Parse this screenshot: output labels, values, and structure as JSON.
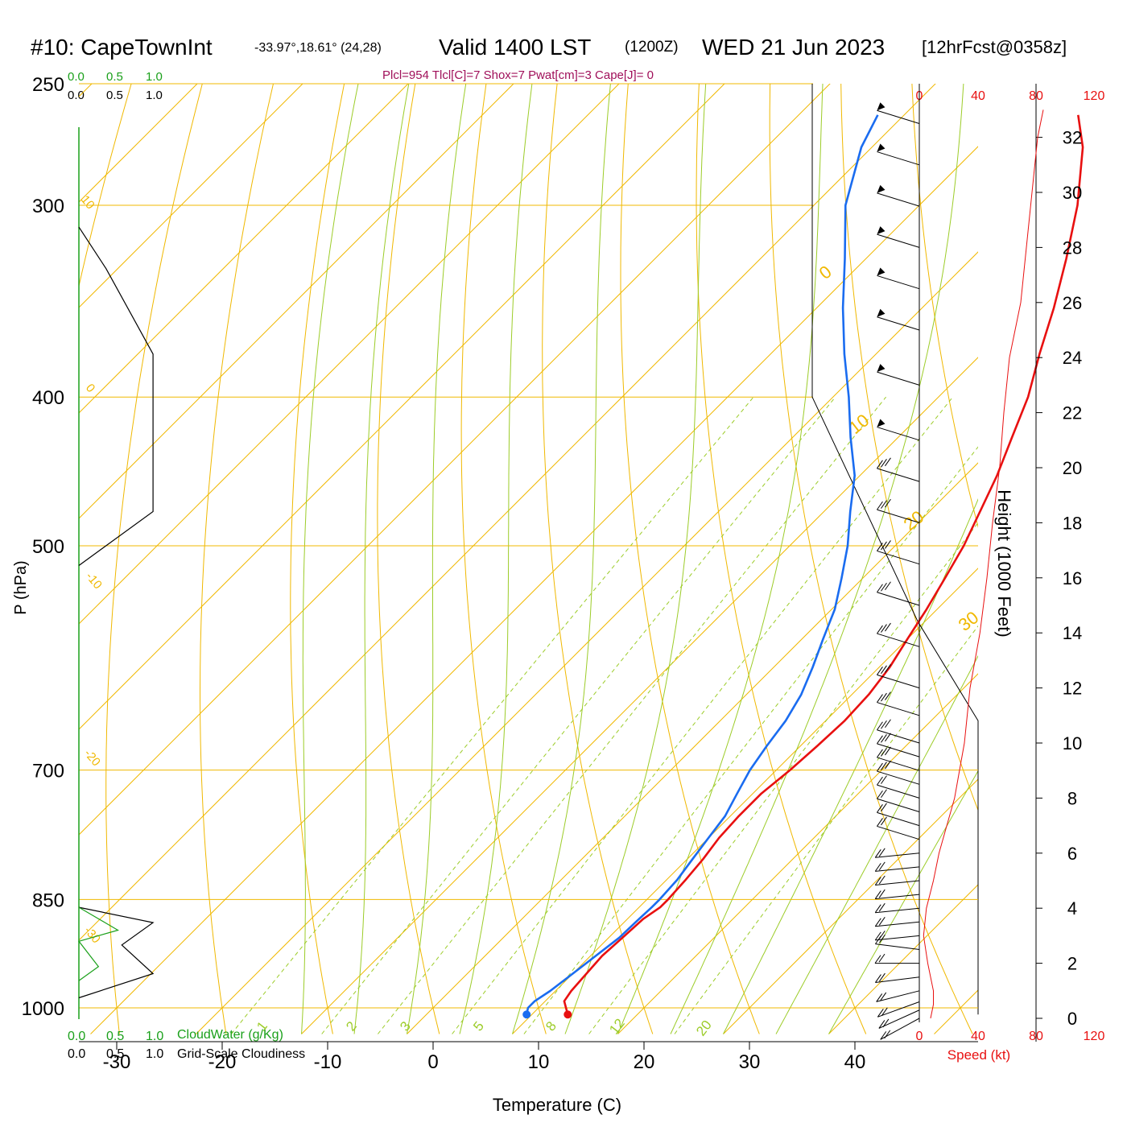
{
  "header": {
    "station": "#10: CapeTownInt",
    "coords": "-33.97°,18.61° (24,28)",
    "valid": "Valid 1400 LST",
    "zulu": "(1200Z)",
    "date": "WED 21 Jun 2023",
    "forecast": "[12hrFcst@0358z]"
  },
  "indices": "Plcl=954 Tlcl[C]=7 Shox=7 Pwat[cm]=3 Cape[J]= 0",
  "top_scales": {
    "green": [
      "0.0",
      "0.5",
      "1.0"
    ],
    "black": [
      "0.0",
      "0.5",
      "1.0"
    ]
  },
  "bottom_legend": {
    "green_ticks": [
      "0.0",
      "0.5",
      "1.0"
    ],
    "green_label": "CloudWater (g/Kg)",
    "black_ticks": [
      "0.0",
      "0.5",
      "1.0"
    ],
    "black_label": "Grid-Scale Cloudiness"
  },
  "wind_panel": {
    "top_ticks": [
      "0",
      "40",
      "80",
      "120"
    ],
    "bottom_ticks": [
      "0",
      "40",
      "80",
      "120"
    ],
    "speed_label": "Speed (kt)"
  },
  "height_axis": {
    "label": "Height (1000 Feet)",
    "ticks": [
      "0",
      "2",
      "4",
      "6",
      "8",
      "10",
      "12",
      "14",
      "16",
      "18",
      "20",
      "22",
      "24",
      "26",
      "28",
      "30",
      "32"
    ]
  },
  "isotherm_labels": [
    "0",
    "10",
    "20",
    "30"
  ],
  "dry_adiabat_labels": [
    "10",
    "0",
    "-10",
    "-20",
    "-30"
  ],
  "mixing_ratio_labels": [
    "1",
    "2",
    "3",
    "5",
    "8",
    "12",
    "20"
  ],
  "colors": {
    "temperature": "#e81010",
    "dewpoint": "#1a6cf0",
    "isobar_isotherm": "#f0b800",
    "adiabat": "#9ccc28",
    "cloud_water": "#1aa01a",
    "indices": "#a0105a",
    "speed": "#e81010"
  },
  "chart_data": {
    "type": "line",
    "title": "#10: CapeTownInt  -33.97°,18.61° (24,28)  Valid 1400 LST (1200Z) WED 21 Jun 2023 [12hrFcst@0358z]",
    "xlabel": "Temperature (C)",
    "ylabel": "P (hPa)",
    "x_ticks": [
      "-30",
      "-20",
      "-10",
      "0",
      "10",
      "20",
      "30",
      "40"
    ],
    "y_ticks": [
      "250",
      "300",
      "400",
      "500",
      "700",
      "850",
      "1000"
    ],
    "y_scale": "log",
    "xlim": [
      -34,
      36
    ],
    "ylim": [
      1016,
      250
    ],
    "series": [
      {
        "role": "temperature",
        "color": "#e81010",
        "p": [
          1010,
          1000,
          990,
          975,
          950,
          925,
          900,
          875,
          860,
          850,
          825,
          800,
          775,
          750,
          725,
          700,
          675,
          650,
          625,
          600,
          575,
          550,
          525,
          500,
          475,
          450,
          425,
          400,
          375,
          350,
          325,
          300,
          275,
          262
        ],
        "t": [
          13.4,
          12.6,
          11.8,
          11.5,
          11.3,
          11.1,
          11.3,
          11.5,
          12.0,
          12.0,
          11.8,
          11.5,
          11.0,
          10.8,
          10.8,
          11.3,
          11.6,
          11.8,
          11.6,
          11.0,
          10.0,
          9.0,
          7.8,
          6.5,
          4.8,
          3.0,
          0.8,
          -1.5,
          -4.5,
          -7.5,
          -11.0,
          -15.0,
          -20.0,
          -23.5
        ]
      },
      {
        "role": "dewpoint",
        "color": "#1a6cf0",
        "p": [
          1010,
          1000,
          990,
          975,
          950,
          925,
          900,
          875,
          860,
          850,
          825,
          800,
          775,
          750,
          725,
          700,
          675,
          650,
          625,
          600,
          575,
          550,
          525,
          500,
          475,
          450,
          425,
          400,
          375,
          350,
          325,
          300,
          275,
          262
        ],
        "t": [
          9.5,
          9.0,
          9.0,
          9.5,
          10.0,
          10.5,
          11.0,
          11.1,
          11.2,
          11.2,
          11.0,
          10.5,
          10.0,
          9.5,
          8.5,
          7.5,
          6.8,
          6.2,
          5.2,
          3.7,
          2.0,
          0.3,
          -2.0,
          -4.5,
          -7.5,
          -10.5,
          -14.5,
          -18.5,
          -23.0,
          -27.5,
          -32.0,
          -37.0,
          -41.0,
          -42.5
        ]
      },
      {
        "role": "wind_speed",
        "color": "#e81010",
        "height_kft": [
          0,
          0.5,
          1,
          2,
          3,
          4,
          5,
          6,
          8,
          10,
          12,
          14,
          16,
          18,
          20,
          22,
          24,
          25,
          26,
          28,
          30,
          32,
          33
        ],
        "speed_kt": [
          8,
          10,
          10,
          6,
          3,
          5,
          10,
          14,
          25,
          32,
          36,
          43,
          48,
          52,
          57,
          60,
          64,
          68,
          72,
          76,
          80,
          84,
          88
        ]
      }
    ],
    "wind_barbs_kft": [
      0,
      0.3,
      0.6,
      1,
      1.5,
      2,
      2.5,
      3,
      3.5,
      4,
      4.5,
      5,
      5.5,
      6,
      6.5,
      7,
      7.5,
      8,
      8.5,
      9,
      9.5,
      10,
      11,
      12,
      13.5,
      15,
      16.5,
      18,
      19.5,
      21,
      23,
      25,
      26.5,
      28,
      29.5,
      31,
      32.5
    ],
    "cloud_water_gkg": [
      {
        "p": 860,
        "v": 0.0
      },
      {
        "p": 890,
        "v": 0.5
      },
      {
        "p": 905,
        "v": 0.0
      },
      {
        "p": 940,
        "v": 0.25
      },
      {
        "p": 960,
        "v": 0.0
      }
    ],
    "grid_scale_cloudiness": [
      {
        "p": 310,
        "v": 0.0
      },
      {
        "p": 330,
        "v": 0.35
      },
      {
        "p": 375,
        "v": 0.95
      },
      {
        "p": 475,
        "v": 0.95
      },
      {
        "p": 515,
        "v": 0.0
      },
      {
        "p": 860,
        "v": 0.0
      },
      {
        "p": 880,
        "v": 0.95
      },
      {
        "p": 910,
        "v": 0.55
      },
      {
        "p": 950,
        "v": 0.95
      },
      {
        "p": 985,
        "v": 0.0
      }
    ],
    "grid": true
  }
}
